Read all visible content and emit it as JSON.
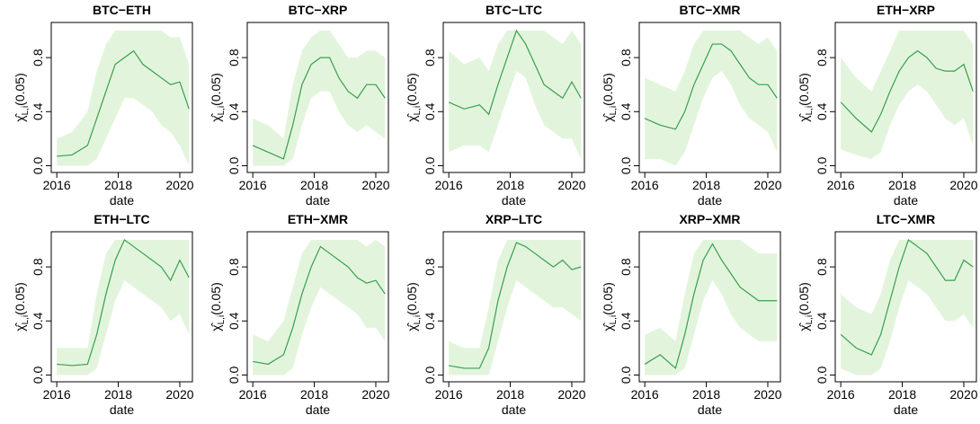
{
  "chart_data": {
    "type": "line",
    "xlabel": "date",
    "ylabel_symbol": "χ̂",
    "ylabel_subscript": "L,i",
    "ylabel_suffix": "(0.05)",
    "x": [
      2016.0,
      2016.5,
      2017.0,
      2017.3,
      2017.6,
      2017.9,
      2018.2,
      2018.5,
      2018.8,
      2019.1,
      2019.4,
      2019.7,
      2020.0,
      2020.3
    ],
    "xlim": [
      2015.82,
      2020.41
    ],
    "xticks": [
      2016,
      2018,
      2020
    ],
    "ylim": [
      -0.05,
      1.06
    ],
    "yticks": [
      {
        "value": 0,
        "label": "0.0"
      },
      0.4,
      0.8
    ],
    "line_color": "#3a9e50",
    "band_color": "#e2f5dc",
    "panels": [
      {
        "title": "BTC−ETH",
        "values": [
          0.07,
          0.08,
          0.15,
          0.35,
          0.55,
          0.75,
          0.8,
          0.85,
          0.75,
          0.7,
          0.65,
          0.6,
          0.62,
          0.42
        ],
        "lower": [
          0,
          0,
          0,
          0.05,
          0.2,
          0.35,
          0.5,
          0.5,
          0.45,
          0.4,
          0.3,
          0.25,
          0.15,
          0
        ],
        "upper": [
          0.2,
          0.25,
          0.4,
          0.7,
          0.9,
          1,
          1,
          1,
          1,
          1,
          1,
          0.95,
          0.95,
          0.75
        ]
      },
      {
        "title": "BTC−XRP",
        "values": [
          0.15,
          0.1,
          0.05,
          0.3,
          0.6,
          0.75,
          0.8,
          0.8,
          0.65,
          0.55,
          0.5,
          0.6,
          0.6,
          0.5
        ],
        "lower": [
          0,
          0,
          0,
          0.05,
          0.3,
          0.5,
          0.55,
          0.55,
          0.4,
          0.3,
          0.25,
          0.3,
          0.25,
          0.2
        ],
        "upper": [
          0.35,
          0.3,
          0.2,
          0.6,
          0.85,
          0.95,
          1,
          1,
          0.9,
          0.8,
          0.8,
          0.85,
          0.85,
          0.8
        ]
      },
      {
        "title": "BTC−LTC",
        "values": [
          0.47,
          0.42,
          0.45,
          0.38,
          0.6,
          0.8,
          1.0,
          0.9,
          0.75,
          0.6,
          0.55,
          0.5,
          0.62,
          0.5
        ],
        "lower": [
          0.1,
          0.15,
          0.15,
          0.1,
          0.3,
          0.5,
          0.7,
          0.65,
          0.45,
          0.3,
          0.25,
          0.2,
          0.2,
          0.05
        ],
        "upper": [
          0.85,
          0.75,
          0.8,
          0.7,
          0.9,
          1,
          1,
          1,
          1,
          1,
          0.95,
          0.9,
          1,
          0.9
        ]
      },
      {
        "title": "BTC−XMR",
        "values": [
          0.35,
          0.3,
          0.27,
          0.4,
          0.6,
          0.75,
          0.9,
          0.9,
          0.85,
          0.75,
          0.65,
          0.6,
          0.6,
          0.5
        ],
        "lower": [
          0.05,
          0.05,
          0,
          0.1,
          0.3,
          0.5,
          0.65,
          0.7,
          0.6,
          0.45,
          0.35,
          0.3,
          0.25,
          0.1
        ],
        "upper": [
          0.65,
          0.6,
          0.55,
          0.7,
          0.9,
          1,
          1,
          1,
          1,
          1,
          0.95,
          0.9,
          0.95,
          0.85
        ]
      },
      {
        "title": "ETH−XRP",
        "values": [
          0.47,
          0.35,
          0.25,
          0.38,
          0.55,
          0.7,
          0.8,
          0.85,
          0.8,
          0.72,
          0.7,
          0.7,
          0.75,
          0.55
        ],
        "lower": [
          0.12,
          0.08,
          0.05,
          0.1,
          0.3,
          0.45,
          0.55,
          0.6,
          0.55,
          0.45,
          0.35,
          0.3,
          0.35,
          0.15
        ],
        "upper": [
          0.8,
          0.65,
          0.55,
          0.7,
          0.85,
          1,
          1,
          1,
          1,
          1,
          1,
          1,
          1,
          0.9
        ]
      },
      {
        "title": "ETH−LTC",
        "values": [
          0.08,
          0.07,
          0.08,
          0.3,
          0.6,
          0.85,
          1.0,
          0.95,
          0.9,
          0.85,
          0.8,
          0.7,
          0.85,
          0.72
        ],
        "lower": [
          0,
          0,
          0,
          0.05,
          0.3,
          0.55,
          0.7,
          0.65,
          0.6,
          0.55,
          0.5,
          0.4,
          0.45,
          0.3
        ],
        "upper": [
          0.2,
          0.2,
          0.2,
          0.6,
          0.9,
          1,
          1,
          1,
          1,
          1,
          1,
          1,
          1,
          1
        ]
      },
      {
        "title": "ETH−XMR",
        "values": [
          0.1,
          0.08,
          0.15,
          0.35,
          0.6,
          0.8,
          0.95,
          0.9,
          0.85,
          0.8,
          0.72,
          0.68,
          0.7,
          0.6
        ],
        "lower": [
          0,
          0,
          0,
          0.05,
          0.3,
          0.5,
          0.65,
          0.6,
          0.55,
          0.5,
          0.45,
          0.35,
          0.35,
          0.25
        ],
        "upper": [
          0.3,
          0.25,
          0.4,
          0.65,
          0.9,
          1,
          1,
          1,
          1,
          1,
          1,
          0.95,
          1,
          0.95
        ]
      },
      {
        "title": "XRP−LTC",
        "values": [
          0.07,
          0.05,
          0.05,
          0.2,
          0.55,
          0.8,
          0.98,
          0.95,
          0.9,
          0.85,
          0.8,
          0.85,
          0.78,
          0.8
        ],
        "lower": [
          0,
          0,
          0,
          0,
          0.25,
          0.5,
          0.7,
          0.65,
          0.6,
          0.55,
          0.5,
          0.5,
          0.45,
          0.4
        ],
        "upper": [
          0.25,
          0.2,
          0.2,
          0.5,
          0.85,
          1,
          1,
          1,
          1,
          1,
          1,
          1,
          1,
          1
        ]
      },
      {
        "title": "XRP−XMR",
        "values": [
          0.08,
          0.15,
          0.05,
          0.3,
          0.6,
          0.85,
          0.97,
          0.85,
          0.75,
          0.65,
          0.6,
          0.55,
          0.55,
          0.55
        ],
        "lower": [
          0,
          0,
          0,
          0.05,
          0.3,
          0.55,
          0.7,
          0.6,
          0.45,
          0.35,
          0.3,
          0.25,
          0.25,
          0.25
        ],
        "upper": [
          0.3,
          0.35,
          0.25,
          0.6,
          0.9,
          1,
          1,
          1,
          1,
          1,
          0.95,
          0.9,
          0.9,
          0.9
        ]
      },
      {
        "title": "LTC−XMR",
        "values": [
          0.3,
          0.2,
          0.15,
          0.3,
          0.55,
          0.8,
          1.0,
          0.95,
          0.9,
          0.8,
          0.7,
          0.7,
          0.85,
          0.8
        ],
        "lower": [
          0.05,
          0,
          0,
          0.05,
          0.25,
          0.5,
          0.7,
          0.65,
          0.6,
          0.5,
          0.4,
          0.4,
          0.45,
          0.35
        ],
        "upper": [
          0.6,
          0.5,
          0.45,
          0.6,
          0.85,
          1,
          1,
          1,
          1,
          1,
          1,
          1,
          1,
          1
        ]
      }
    ]
  }
}
